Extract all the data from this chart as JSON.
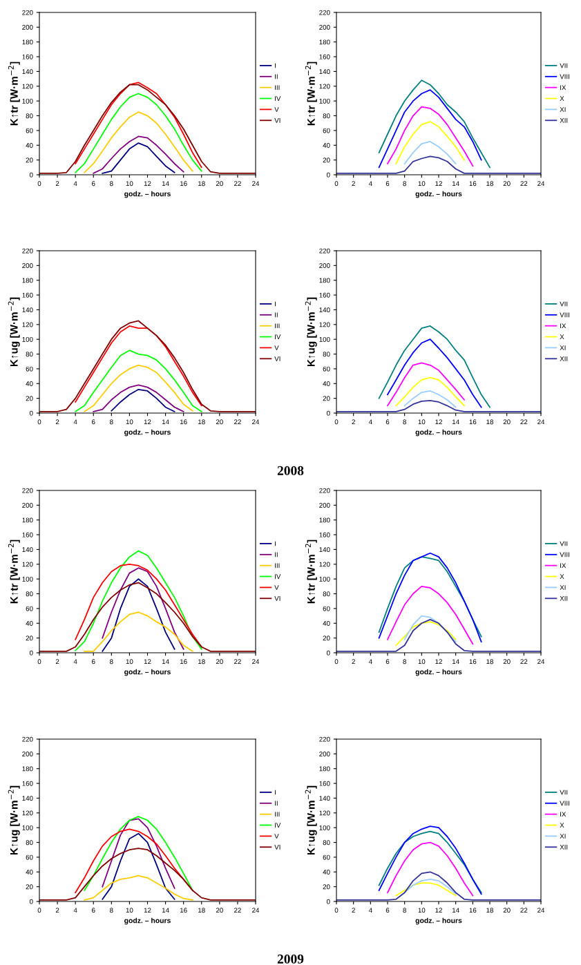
{
  "chart_data": [
    {
      "type": "line",
      "ylabel": "K↑tr [W·m$^{−2}$]",
      "xlabel": "godz. – hours",
      "x": [
        0,
        1,
        2,
        3,
        4,
        5,
        6,
        7,
        8,
        9,
        10,
        11,
        12,
        13,
        14,
        15,
        16,
        17,
        18,
        19,
        20,
        21,
        22,
        23,
        24
      ],
      "xlim": [
        0,
        24
      ],
      "xticks": [
        0,
        2,
        4,
        6,
        8,
        10,
        12,
        14,
        16,
        18,
        20,
        22,
        24
      ],
      "ylim": [
        0,
        220
      ],
      "yticks": [
        0,
        20,
        40,
        60,
        80,
        100,
        120,
        140,
        160,
        180,
        200,
        220
      ],
      "legend": "right",
      "grid": false,
      "series": [
        {
          "name": "I",
          "color": "#000080",
          "values": [
            null,
            null,
            null,
            null,
            null,
            null,
            null,
            2,
            5,
            20,
            35,
            43,
            38,
            25,
            12,
            3,
            null,
            null,
            null,
            null,
            null,
            null,
            null,
            null,
            null
          ]
        },
        {
          "name": "II",
          "color": "#800080",
          "values": [
            null,
            null,
            null,
            null,
            null,
            null,
            2,
            8,
            22,
            35,
            45,
            52,
            50,
            40,
            28,
            15,
            4,
            null,
            null,
            null,
            null,
            null,
            null,
            null,
            null
          ]
        },
        {
          "name": "III",
          "color": "#ffcc00",
          "values": [
            null,
            null,
            null,
            null,
            null,
            3,
            15,
            32,
            50,
            65,
            78,
            85,
            80,
            70,
            55,
            38,
            20,
            5,
            null,
            null,
            null,
            null,
            null,
            null,
            null
          ]
        },
        {
          "name": "IV",
          "color": "#00ff00",
          "values": [
            null,
            null,
            null,
            null,
            3,
            15,
            35,
            55,
            75,
            92,
            105,
            110,
            105,
            95,
            80,
            62,
            40,
            20,
            5,
            null,
            null,
            null,
            null,
            null,
            null
          ]
        },
        {
          "name": "V",
          "color": "#ff0000",
          "values": [
            null,
            null,
            null,
            null,
            15,
            35,
            55,
            75,
            95,
            110,
            122,
            125,
            118,
            110,
            95,
            78,
            55,
            30,
            10,
            null,
            null,
            null,
            null,
            null,
            null
          ]
        },
        {
          "name": "VI",
          "color": "#800000",
          "values": [
            2,
            2,
            2,
            3,
            18,
            40,
            60,
            80,
            98,
            112,
            122,
            122,
            115,
            105,
            95,
            80,
            62,
            40,
            18,
            4,
            2,
            2,
            2,
            2,
            2
          ]
        }
      ]
    },
    {
      "type": "line",
      "ylabel": "K↑tr [W·m$^{−2}$]",
      "xlabel": "godz. – hours",
      "x": [
        0,
        1,
        2,
        3,
        4,
        5,
        6,
        7,
        8,
        9,
        10,
        11,
        12,
        13,
        14,
        15,
        16,
        17,
        18,
        19,
        20,
        21,
        22,
        23,
        24
      ],
      "xlim": [
        0,
        24
      ],
      "xticks": [
        0,
        2,
        4,
        6,
        8,
        10,
        12,
        14,
        16,
        18,
        20,
        22,
        24
      ],
      "ylim": [
        0,
        220
      ],
      "yticks": [
        0,
        20,
        40,
        60,
        80,
        100,
        120,
        140,
        160,
        180,
        200,
        220
      ],
      "legend": "right",
      "grid": false,
      "series": [
        {
          "name": "VII",
          "color": "#008080",
          "values": [
            null,
            null,
            null,
            null,
            null,
            30,
            55,
            80,
            100,
            115,
            128,
            122,
            110,
            95,
            85,
            72,
            50,
            30,
            10,
            null,
            null,
            null,
            null,
            null,
            null
          ]
        },
        {
          "name": "VIII",
          "color": "#0000ff",
          "values": [
            null,
            null,
            null,
            null,
            null,
            10,
            35,
            60,
            85,
            100,
            110,
            115,
            105,
            90,
            75,
            65,
            45,
            20,
            null,
            null,
            null,
            null,
            null,
            null,
            null
          ]
        },
        {
          "name": "IX",
          "color": "#ff00ff",
          "values": [
            null,
            null,
            null,
            null,
            null,
            null,
            15,
            35,
            60,
            80,
            92,
            90,
            82,
            68,
            50,
            32,
            12,
            null,
            null,
            null,
            null,
            null,
            null,
            null,
            null
          ]
        },
        {
          "name": "X",
          "color": "#ffff00",
          "values": [
            null,
            null,
            null,
            null,
            null,
            null,
            null,
            15,
            38,
            55,
            68,
            72,
            65,
            52,
            38,
            20,
            null,
            null,
            null,
            null,
            null,
            null,
            null,
            null,
            null
          ]
        },
        {
          "name": "XI",
          "color": "#99ccff",
          "values": [
            null,
            null,
            null,
            null,
            null,
            null,
            null,
            null,
            15,
            30,
            42,
            45,
            38,
            28,
            15,
            null,
            null,
            null,
            null,
            null,
            null,
            null,
            null,
            null,
            null
          ]
        },
        {
          "name": "XII",
          "color": "#333399",
          "values": [
            2,
            2,
            2,
            2,
            2,
            2,
            2,
            2,
            5,
            18,
            22,
            25,
            23,
            18,
            8,
            2,
            2,
            2,
            2,
            2,
            2,
            2,
            2,
            2,
            2
          ]
        }
      ]
    },
    {
      "type": "line",
      "ylabel": "K↑ug [W·m$^{−2}$]",
      "xlabel": "godz. – hours",
      "x": [
        0,
        1,
        2,
        3,
        4,
        5,
        6,
        7,
        8,
        9,
        10,
        11,
        12,
        13,
        14,
        15,
        16,
        17,
        18,
        19,
        20,
        21,
        22,
        23,
        24
      ],
      "xlim": [
        0,
        24
      ],
      "xticks": [
        0,
        2,
        4,
        6,
        8,
        10,
        12,
        14,
        16,
        18,
        20,
        22,
        24
      ],
      "ylim": [
        0,
        220
      ],
      "yticks": [
        0,
        20,
        40,
        60,
        80,
        100,
        120,
        140,
        160,
        180,
        200,
        220
      ],
      "legend": "right",
      "grid": false,
      "series": [
        {
          "name": "I",
          "color": "#000080",
          "values": [
            null,
            null,
            null,
            null,
            null,
            null,
            null,
            null,
            3,
            15,
            25,
            32,
            30,
            20,
            8,
            2,
            null,
            null,
            null,
            null,
            null,
            null,
            null,
            null,
            null
          ]
        },
        {
          "name": "II",
          "color": "#800080",
          "values": [
            null,
            null,
            null,
            null,
            null,
            null,
            2,
            5,
            18,
            28,
            35,
            38,
            35,
            28,
            18,
            8,
            2,
            null,
            null,
            null,
            null,
            null,
            null,
            null,
            null
          ]
        },
        {
          "name": "III",
          "color": "#ffcc00",
          "values": [
            null,
            null,
            null,
            null,
            null,
            2,
            10,
            25,
            40,
            52,
            60,
            65,
            62,
            55,
            42,
            28,
            12,
            3,
            null,
            null,
            null,
            null,
            null,
            null,
            null
          ]
        },
        {
          "name": "IV",
          "color": "#00ff00",
          "values": [
            null,
            null,
            null,
            null,
            2,
            10,
            28,
            45,
            62,
            78,
            85,
            80,
            78,
            72,
            60,
            45,
            28,
            10,
            2,
            null,
            null,
            null,
            null,
            null,
            null
          ]
        },
        {
          "name": "V",
          "color": "#ff0000",
          "values": [
            null,
            null,
            null,
            null,
            15,
            35,
            55,
            75,
            95,
            110,
            118,
            115,
            115,
            105,
            90,
            70,
            50,
            28,
            10,
            null,
            null,
            null,
            null,
            null,
            null
          ]
        },
        {
          "name": "VI",
          "color": "#800000",
          "values": [
            2,
            2,
            2,
            5,
            20,
            40,
            60,
            80,
            100,
            115,
            122,
            125,
            115,
            105,
            92,
            75,
            55,
            32,
            12,
            3,
            2,
            2,
            2,
            2,
            2
          ]
        }
      ]
    },
    {
      "type": "line",
      "ylabel": "K↑ug [W·m$^{−2}$]",
      "xlabel": "godz. – hours",
      "x": [
        0,
        1,
        2,
        3,
        4,
        5,
        6,
        7,
        8,
        9,
        10,
        11,
        12,
        13,
        14,
        15,
        16,
        17,
        18,
        19,
        20,
        21,
        22,
        23,
        24
      ],
      "xlim": [
        0,
        24
      ],
      "xticks": [
        0,
        2,
        4,
        6,
        8,
        10,
        12,
        14,
        16,
        18,
        20,
        22,
        24
      ],
      "ylim": [
        0,
        220
      ],
      "yticks": [
        0,
        20,
        40,
        60,
        80,
        100,
        120,
        140,
        160,
        180,
        200,
        220
      ],
      "legend": "right",
      "grid": false,
      "annotations": [
        "2008"
      ],
      "series": [
        {
          "name": "VII",
          "color": "#008080",
          "values": [
            null,
            null,
            null,
            null,
            null,
            20,
            42,
            65,
            85,
            100,
            115,
            118,
            110,
            100,
            85,
            72,
            48,
            25,
            8,
            null,
            null,
            null,
            null,
            null,
            null
          ]
        },
        {
          "name": "VIII",
          "color": "#0000ff",
          "values": [
            null,
            null,
            null,
            null,
            null,
            null,
            25,
            45,
            65,
            82,
            95,
            100,
            88,
            75,
            60,
            45,
            25,
            8,
            null,
            null,
            null,
            null,
            null,
            null,
            null
          ]
        },
        {
          "name": "IX",
          "color": "#ff00ff",
          "values": [
            null,
            null,
            null,
            null,
            null,
            null,
            10,
            28,
            48,
            65,
            68,
            65,
            58,
            45,
            32,
            18,
            null,
            null,
            null,
            null,
            null,
            null,
            null,
            null,
            null
          ]
        },
        {
          "name": "X",
          "color": "#ffff00",
          "values": [
            null,
            null,
            null,
            null,
            null,
            null,
            null,
            10,
            22,
            35,
            45,
            48,
            45,
            35,
            22,
            10,
            null,
            null,
            null,
            null,
            null,
            null,
            null,
            null,
            null
          ]
        },
        {
          "name": "XI",
          "color": "#99ccff",
          "values": [
            null,
            null,
            null,
            null,
            null,
            null,
            null,
            null,
            10,
            20,
            28,
            30,
            25,
            18,
            8,
            null,
            null,
            null,
            null,
            null,
            null,
            null,
            null,
            null,
            null
          ]
        },
        {
          "name": "XII",
          "color": "#333399",
          "values": [
            2,
            2,
            2,
            2,
            2,
            2,
            2,
            2,
            5,
            12,
            16,
            17,
            15,
            10,
            4,
            2,
            2,
            2,
            2,
            2,
            2,
            2,
            2,
            2,
            2
          ]
        }
      ]
    },
    {
      "type": "line",
      "ylabel": "K↑tr [W·m$^{−2}$]",
      "xlabel": "godz. – hours",
      "x": [
        0,
        1,
        2,
        3,
        4,
        5,
        6,
        7,
        8,
        9,
        10,
        11,
        12,
        13,
        14,
        15,
        16,
        17,
        18,
        19,
        20,
        21,
        22,
        23,
        24
      ],
      "xlim": [
        0,
        24
      ],
      "xticks": [
        0,
        2,
        4,
        6,
        8,
        10,
        12,
        14,
        16,
        18,
        20,
        22,
        24
      ],
      "ylim": [
        0,
        220
      ],
      "yticks": [
        0,
        20,
        40,
        60,
        80,
        100,
        120,
        140,
        160,
        180,
        200,
        220
      ],
      "legend": "right",
      "grid": false,
      "series": [
        {
          "name": "I",
          "color": "#000080",
          "values": [
            null,
            null,
            null,
            null,
            null,
            null,
            null,
            2,
            20,
            60,
            90,
            100,
            90,
            60,
            28,
            5,
            null,
            null,
            null,
            null,
            null,
            null,
            null,
            null,
            null
          ]
        },
        {
          "name": "II",
          "color": "#800080",
          "values": [
            null,
            null,
            null,
            null,
            null,
            null,
            null,
            20,
            55,
            85,
            108,
            115,
            110,
            90,
            60,
            28,
            5,
            null,
            null,
            null,
            null,
            null,
            null,
            null,
            null
          ]
        },
        {
          "name": "III",
          "color": "#ffcc00",
          "values": [
            null,
            null,
            null,
            null,
            null,
            2,
            2,
            15,
            30,
            42,
            52,
            55,
            50,
            42,
            35,
            25,
            10,
            2,
            null,
            null,
            null,
            null,
            null,
            null,
            null
          ]
        },
        {
          "name": "IV",
          "color": "#00ff00",
          "values": [
            null,
            null,
            null,
            null,
            3,
            15,
            40,
            70,
            95,
            115,
            130,
            138,
            132,
            115,
            95,
            75,
            50,
            22,
            5,
            null,
            null,
            null,
            null,
            null,
            null
          ]
        },
        {
          "name": "V",
          "color": "#ff0000",
          "values": [
            null,
            null,
            null,
            null,
            18,
            45,
            75,
            95,
            110,
            118,
            120,
            118,
            112,
            100,
            85,
            65,
            45,
            25,
            8,
            null,
            null,
            null,
            null,
            null,
            null
          ]
        },
        {
          "name": "VI",
          "color": "#800000",
          "values": [
            2,
            2,
            2,
            2,
            8,
            25,
            45,
            62,
            75,
            85,
            92,
            95,
            88,
            80,
            68,
            55,
            40,
            22,
            8,
            2,
            2,
            2,
            2,
            2,
            2
          ]
        }
      ]
    },
    {
      "type": "line",
      "ylabel": "K↑tr [W·m$^{−2}$]",
      "xlabel": "godz. – hours",
      "x": [
        0,
        1,
        2,
        3,
        4,
        5,
        6,
        7,
        8,
        9,
        10,
        11,
        12,
        13,
        14,
        15,
        16,
        17,
        18,
        19,
        20,
        21,
        22,
        23,
        24
      ],
      "xlim": [
        0,
        24
      ],
      "xticks": [
        0,
        2,
        4,
        6,
        8,
        10,
        12,
        14,
        16,
        18,
        20,
        22,
        24
      ],
      "ylim": [
        0,
        220
      ],
      "yticks": [
        0,
        20,
        40,
        60,
        80,
        100,
        120,
        140,
        160,
        180,
        200,
        220
      ],
      "legend": "right",
      "grid": false,
      "series": [
        {
          "name": "VII",
          "color": "#008080",
          "values": [
            null,
            null,
            null,
            null,
            null,
            28,
            60,
            90,
            115,
            125,
            130,
            128,
            125,
            110,
            90,
            70,
            45,
            22,
            null,
            null,
            null,
            null,
            null,
            null,
            null
          ]
        },
        {
          "name": "VIII",
          "color": "#0000ff",
          "values": [
            null,
            null,
            null,
            null,
            null,
            20,
            50,
            80,
            105,
            125,
            130,
            135,
            130,
            115,
            95,
            70,
            45,
            15,
            null,
            null,
            null,
            null,
            null,
            null,
            null
          ]
        },
        {
          "name": "IX",
          "color": "#ff00ff",
          "values": [
            null,
            null,
            null,
            null,
            null,
            null,
            18,
            42,
            65,
            80,
            90,
            88,
            80,
            68,
            52,
            32,
            12,
            null,
            null,
            null,
            null,
            null,
            null,
            null,
            null
          ]
        },
        {
          "name": "X",
          "color": "#ffff00",
          "values": [
            null,
            null,
            null,
            null,
            null,
            null,
            null,
            10,
            22,
            35,
            40,
            42,
            38,
            30,
            18,
            null,
            null,
            null,
            null,
            null,
            null,
            null,
            null,
            null,
            null
          ]
        },
        {
          "name": "XI",
          "color": "#99ccff",
          "values": [
            null,
            null,
            null,
            null,
            null,
            null,
            null,
            null,
            18,
            38,
            50,
            48,
            40,
            28,
            15,
            null,
            null,
            null,
            null,
            null,
            null,
            null,
            null,
            null,
            null
          ]
        },
        {
          "name": "XII",
          "color": "#333399",
          "values": [
            2,
            2,
            2,
            2,
            2,
            2,
            2,
            2,
            10,
            30,
            40,
            45,
            40,
            28,
            12,
            3,
            2,
            2,
            2,
            2,
            2,
            2,
            2,
            2,
            2
          ]
        }
      ]
    },
    {
      "type": "line",
      "ylabel": "K↑ug [W·m$^{−2}$]",
      "xlabel": "godz. – hours",
      "x": [
        0,
        1,
        2,
        3,
        4,
        5,
        6,
        7,
        8,
        9,
        10,
        11,
        12,
        13,
        14,
        15,
        16,
        17,
        18,
        19,
        20,
        21,
        22,
        23,
        24
      ],
      "xlim": [
        0,
        24
      ],
      "xticks": [
        0,
        2,
        4,
        6,
        8,
        10,
        12,
        14,
        16,
        18,
        20,
        22,
        24
      ],
      "ylim": [
        0,
        220
      ],
      "yticks": [
        0,
        20,
        40,
        60,
        80,
        100,
        120,
        140,
        160,
        180,
        200,
        220
      ],
      "legend": "right",
      "grid": false,
      "series": [
        {
          "name": "I",
          "color": "#000080",
          "values": [
            null,
            null,
            null,
            null,
            null,
            null,
            null,
            3,
            20,
            55,
            85,
            92,
            80,
            50,
            18,
            3,
            null,
            null,
            null,
            null,
            null,
            null,
            null,
            null,
            null
          ]
        },
        {
          "name": "II",
          "color": "#800080",
          "values": [
            null,
            null,
            null,
            null,
            null,
            null,
            null,
            20,
            55,
            90,
            110,
            112,
            100,
            75,
            45,
            18,
            null,
            null,
            null,
            null,
            null,
            null,
            null,
            null,
            null
          ]
        },
        {
          "name": "III",
          "color": "#ffcc00",
          "values": [
            null,
            null,
            null,
            null,
            null,
            2,
            5,
            15,
            25,
            30,
            32,
            35,
            32,
            25,
            18,
            10,
            4,
            2,
            null,
            null,
            null,
            null,
            null,
            null,
            null
          ]
        },
        {
          "name": "IV",
          "color": "#00ff00",
          "values": [
            null,
            null,
            null,
            null,
            null,
            15,
            35,
            58,
            80,
            98,
            110,
            115,
            110,
            98,
            80,
            60,
            38,
            15,
            null,
            null,
            null,
            null,
            null,
            null,
            null
          ]
        },
        {
          "name": "V",
          "color": "#ff0000",
          "values": [
            null,
            null,
            null,
            null,
            12,
            32,
            55,
            75,
            88,
            95,
            98,
            95,
            88,
            78,
            62,
            45,
            30,
            15,
            null,
            null,
            null,
            null,
            null,
            null,
            null
          ]
        },
        {
          "name": "VI",
          "color": "#800000",
          "values": [
            2,
            2,
            2,
            2,
            5,
            20,
            35,
            48,
            58,
            65,
            70,
            72,
            70,
            62,
            52,
            42,
            30,
            15,
            5,
            2,
            2,
            2,
            2,
            2,
            2
          ]
        }
      ]
    },
    {
      "type": "line",
      "ylabel": "K↑ug [W·m$^{−2}$]",
      "xlabel": "godz. – hours",
      "x": [
        0,
        1,
        2,
        3,
        4,
        5,
        6,
        7,
        8,
        9,
        10,
        11,
        12,
        13,
        14,
        15,
        16,
        17,
        18,
        19,
        20,
        21,
        22,
        23,
        24
      ],
      "xlim": [
        0,
        24
      ],
      "xticks": [
        0,
        2,
        4,
        6,
        8,
        10,
        12,
        14,
        16,
        18,
        20,
        22,
        24
      ],
      "ylim": [
        0,
        220
      ],
      "yticks": [
        0,
        20,
        40,
        60,
        80,
        100,
        120,
        140,
        160,
        180,
        200,
        220
      ],
      "legend": "right",
      "grid": false,
      "annotations": [
        "2009"
      ],
      "series": [
        {
          "name": "VII",
          "color": "#008080",
          "values": [
            null,
            null,
            null,
            null,
            null,
            22,
            45,
            65,
            80,
            88,
            92,
            95,
            92,
            80,
            65,
            50,
            30,
            12,
            null,
            null,
            null,
            null,
            null,
            null,
            null
          ]
        },
        {
          "name": "VIII",
          "color": "#0000ff",
          "values": [
            null,
            null,
            null,
            null,
            null,
            15,
            38,
            60,
            80,
            92,
            98,
            102,
            100,
            88,
            72,
            52,
            30,
            10,
            null,
            null,
            null,
            null,
            null,
            null,
            null
          ]
        },
        {
          "name": "IX",
          "color": "#ff00ff",
          "values": [
            null,
            null,
            null,
            null,
            null,
            null,
            12,
            35,
            55,
            70,
            78,
            80,
            75,
            62,
            45,
            25,
            8,
            null,
            null,
            null,
            null,
            null,
            null,
            null,
            null
          ]
        },
        {
          "name": "X",
          "color": "#ffff00",
          "values": [
            null,
            null,
            null,
            null,
            null,
            null,
            null,
            8,
            15,
            22,
            25,
            25,
            22,
            15,
            8,
            null,
            null,
            null,
            null,
            null,
            null,
            null,
            null,
            null,
            null
          ]
        },
        {
          "name": "XI",
          "color": "#99ccff",
          "values": [
            null,
            null,
            null,
            null,
            null,
            null,
            null,
            null,
            12,
            22,
            28,
            30,
            28,
            20,
            10,
            null,
            null,
            null,
            null,
            null,
            null,
            null,
            null,
            null,
            null
          ]
        },
        {
          "name": "XII",
          "color": "#333399",
          "values": [
            2,
            2,
            2,
            2,
            2,
            2,
            2,
            3,
            12,
            28,
            38,
            40,
            35,
            25,
            12,
            3,
            2,
            2,
            2,
            2,
            2,
            2,
            2,
            2,
            2
          ]
        }
      ]
    }
  ]
}
